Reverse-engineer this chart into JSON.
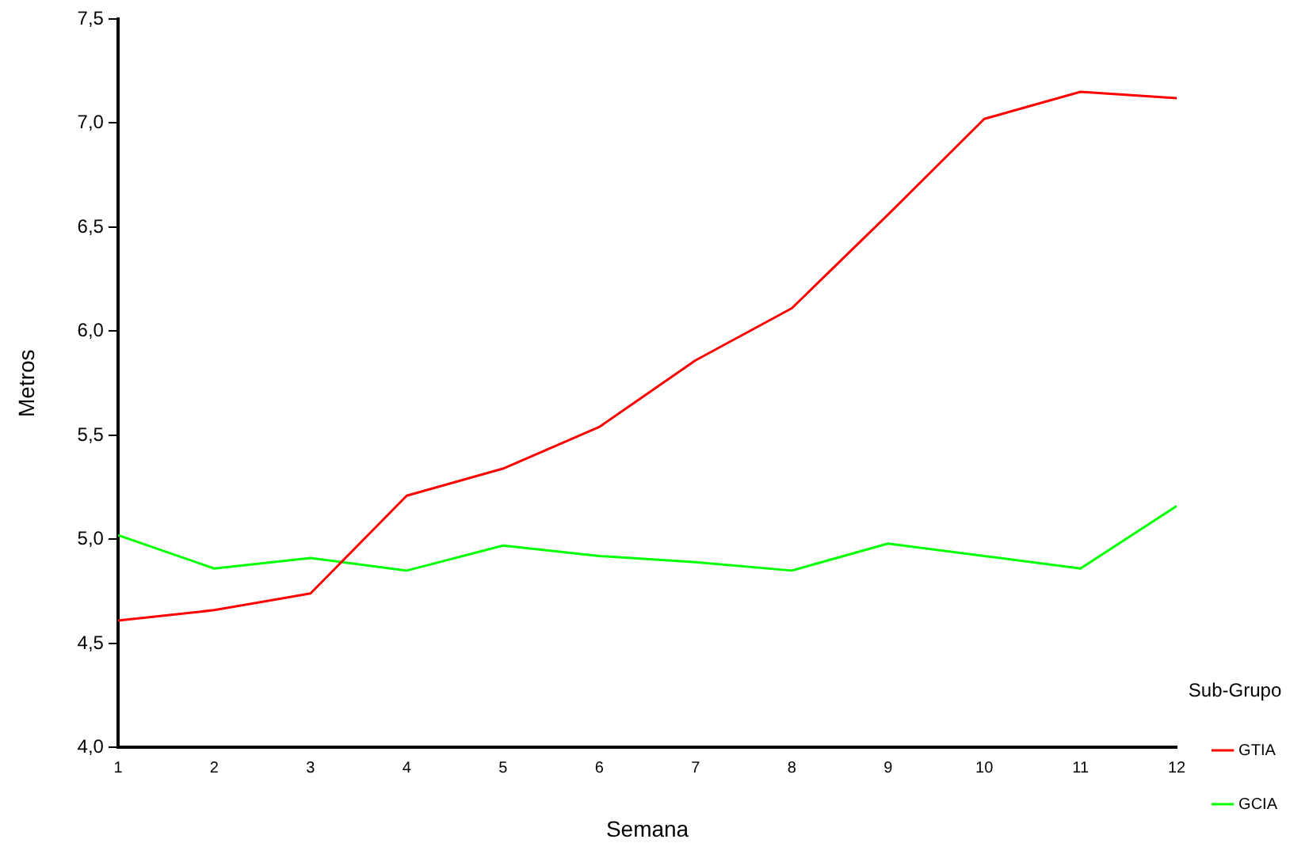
{
  "chart_data": {
    "type": "line",
    "xlabel": "Semana",
    "ylabel": "Metros",
    "legend_title": "Sub-Grupo",
    "x": [
      1,
      2,
      3,
      4,
      5,
      6,
      7,
      8,
      9,
      10,
      11,
      12
    ],
    "series": [
      {
        "name": "GTIA",
        "color": "#ff0000",
        "values": [
          4.61,
          4.66,
          4.74,
          5.21,
          5.34,
          5.54,
          5.86,
          6.11,
          6.56,
          7.02,
          7.15,
          7.12
        ]
      },
      {
        "name": "GCIA",
        "color": "#00ff00",
        "values": [
          5.02,
          4.86,
          4.91,
          4.85,
          4.97,
          4.92,
          4.89,
          4.85,
          4.98,
          4.92,
          4.86,
          5.16
        ]
      }
    ],
    "xlim": [
      1,
      12
    ],
    "xticks": [
      1,
      2,
      3,
      4,
      5,
      6,
      7,
      8,
      9,
      10,
      11,
      12
    ],
    "ylim": [
      4.0,
      7.5
    ],
    "yticks": [
      {
        "value": 4.0,
        "label": "4,0"
      },
      {
        "value": 4.5,
        "label": "4,5"
      },
      {
        "value": 5.0,
        "label": "5,0"
      },
      {
        "value": 5.5,
        "label": "5,5"
      },
      {
        "value": 6.0,
        "label": "6,0"
      },
      {
        "value": 6.5,
        "label": "6,5"
      },
      {
        "value": 7.0,
        "label": "7,0"
      },
      {
        "value": 7.5,
        "label": "7,5"
      }
    ],
    "grid": false,
    "legend": "bottom right",
    "marker": "none",
    "line_style": "solid"
  }
}
